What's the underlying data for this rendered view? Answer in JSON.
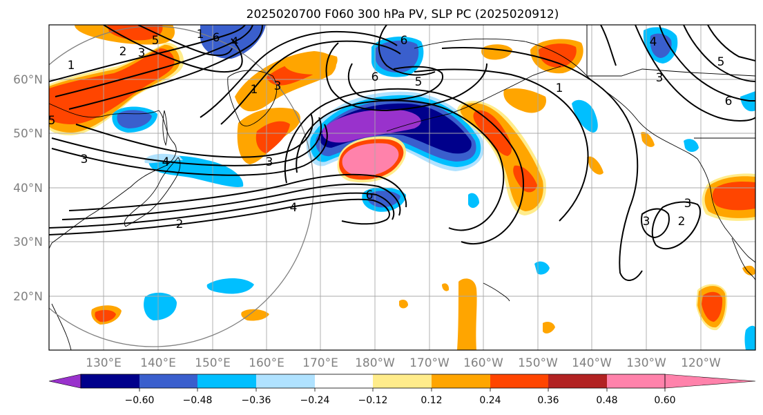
{
  "title": "2025020700 F060 300 hPa PV, SLP PC (2025020912)",
  "lat_ticks": [
    "60°N",
    "50°N",
    "40°N",
    "30°N",
    "20°N"
  ],
  "lon_ticks": [
    "130°E",
    "140°E",
    "150°E",
    "160°E",
    "170°E",
    "180°W",
    "170°W",
    "160°W",
    "150°W",
    "140°W",
    "130°W",
    "120°W"
  ],
  "colorbar": {
    "colors": [
      "#9932cc",
      "#00008b",
      "#3a5fcd",
      "#00bfff",
      "#b0e2ff",
      "#ffffff",
      "#ffec8b",
      "#ffa500",
      "#ff4500",
      "#b22222",
      "#ff82ab"
    ],
    "tick_labels": [
      "−0.60",
      "−0.48",
      "−0.36",
      "−0.24",
      "−0.12",
      "0.12",
      "0.24",
      "0.36",
      "0.48",
      "0.60"
    ],
    "extend": "both"
  },
  "contour_labels": [
    "1",
    "6",
    "4",
    "2",
    "3",
    "5",
    "4",
    "1",
    "3",
    "6",
    "5",
    "3",
    "1",
    "3",
    "4",
    "2",
    "6",
    "5",
    "1",
    "3",
    "3",
    "2",
    "4",
    "5",
    "6",
    "3",
    "6"
  ],
  "style": {
    "grid": true,
    "contour_color": "#000000",
    "ring_color": "#808080"
  }
}
